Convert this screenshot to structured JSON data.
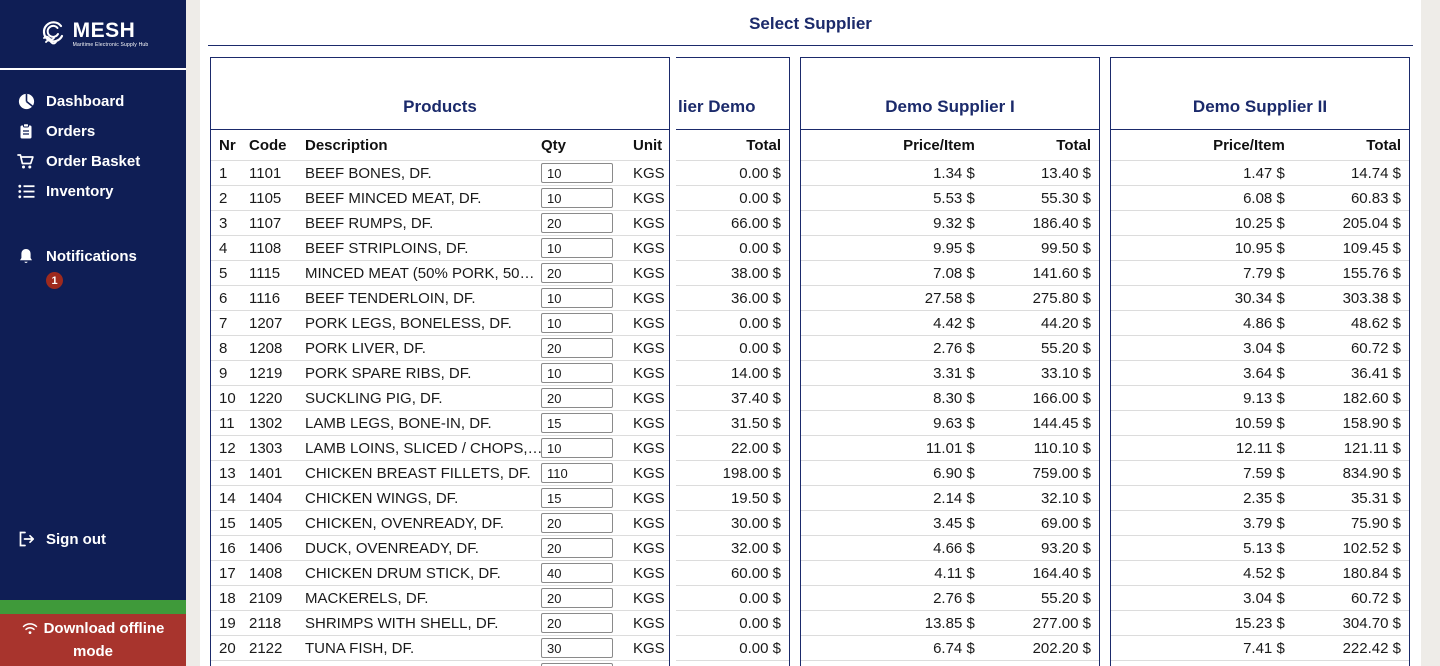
{
  "app": {
    "brand": "MESH",
    "tagline": "Maritime Electronic Supply Hub"
  },
  "colors": {
    "sidebar_bg": "#0f1e55",
    "accent_navy": "#1b2a6b",
    "green_bar": "#3f9a3a",
    "offline_red": "#a8342d",
    "badge_red": "#9e2a1e"
  },
  "icons": {
    "logo": "wave-icon",
    "dashboard": "pie-chart-icon",
    "orders": "clipboard-icon",
    "order_basket": "cart-icon",
    "inventory": "list-icon",
    "notifications": "bell-icon",
    "sign_out": "logout-icon",
    "offline": "wifi-icon"
  },
  "sidebar": {
    "items": [
      {
        "label": "Dashboard"
      },
      {
        "label": "Orders"
      },
      {
        "label": "Order Basket"
      },
      {
        "label": "Inventory"
      }
    ],
    "notifications": {
      "label": "Notifications",
      "badge": "1"
    },
    "sign_out_label": "Sign out",
    "offline_label": "Download offline mode"
  },
  "header": {
    "title": "Select Supplier"
  },
  "products": {
    "title": "Products",
    "columns": {
      "nr": "Nr",
      "code": "Code",
      "description": "Description",
      "qty": "Qty",
      "unit": "Unit"
    }
  },
  "suppliers": {
    "demo_clipped": {
      "title_visible": "lier Demo",
      "columns": {
        "total": "Total"
      }
    },
    "supplier1": {
      "title": "Demo Supplier I",
      "columns": {
        "price": "Price/Item",
        "total": "Total"
      }
    },
    "supplier2": {
      "title": "Demo Supplier II",
      "columns": {
        "price": "Price/Item",
        "total": "Total"
      }
    }
  },
  "rows": [
    {
      "nr": "1",
      "code": "1101",
      "desc": "BEEF BONES, DF.",
      "qty": "10",
      "unit": "KGS",
      "demo_total": "0.00 $",
      "s1_price": "1.34 $",
      "s1_total": "13.40 $",
      "s2_price": "1.47 $",
      "s2_total": "14.74 $"
    },
    {
      "nr": "2",
      "code": "1105",
      "desc": "BEEF MINCED MEAT, DF.",
      "qty": "10",
      "unit": "KGS",
      "demo_total": "0.00 $",
      "s1_price": "5.53 $",
      "s1_total": "55.30 $",
      "s2_price": "6.08 $",
      "s2_total": "60.83 $"
    },
    {
      "nr": "3",
      "code": "1107",
      "desc": "BEEF RUMPS, DF.",
      "qty": "20",
      "unit": "KGS",
      "demo_total": "66.00 $",
      "s1_price": "9.32 $",
      "s1_total": "186.40 $",
      "s2_price": "10.25 $",
      "s2_total": "205.04 $"
    },
    {
      "nr": "4",
      "code": "1108",
      "desc": "BEEF STRIPLOINS, DF.",
      "qty": "10",
      "unit": "KGS",
      "demo_total": "0.00 $",
      "s1_price": "9.95 $",
      "s1_total": "99.50 $",
      "s2_price": "10.95 $",
      "s2_total": "109.45 $"
    },
    {
      "nr": "5",
      "code": "1115",
      "desc": "MINCED MEAT (50% PORK, 50…",
      "qty": "20",
      "unit": "KGS",
      "demo_total": "38.00 $",
      "s1_price": "7.08 $",
      "s1_total": "141.60 $",
      "s2_price": "7.79 $",
      "s2_total": "155.76 $"
    },
    {
      "nr": "6",
      "code": "1116",
      "desc": "BEEF TENDERLOIN, DF.",
      "qty": "10",
      "unit": "KGS",
      "demo_total": "36.00 $",
      "s1_price": "27.58 $",
      "s1_total": "275.80 $",
      "s2_price": "30.34 $",
      "s2_total": "303.38 $"
    },
    {
      "nr": "7",
      "code": "1207",
      "desc": "PORK LEGS, BONELESS, DF.",
      "qty": "10",
      "unit": "KGS",
      "demo_total": "0.00 $",
      "s1_price": "4.42 $",
      "s1_total": "44.20 $",
      "s2_price": "4.86 $",
      "s2_total": "48.62 $"
    },
    {
      "nr": "8",
      "code": "1208",
      "desc": "PORK LIVER, DF.",
      "qty": "20",
      "unit": "KGS",
      "demo_total": "0.00 $",
      "s1_price": "2.76 $",
      "s1_total": "55.20 $",
      "s2_price": "3.04 $",
      "s2_total": "60.72 $"
    },
    {
      "nr": "9",
      "code": "1219",
      "desc": "PORK SPARE RIBS, DF.",
      "qty": "10",
      "unit": "KGS",
      "demo_total": "14.00 $",
      "s1_price": "3.31 $",
      "s1_total": "33.10 $",
      "s2_price": "3.64 $",
      "s2_total": "36.41 $"
    },
    {
      "nr": "10",
      "code": "1220",
      "desc": "SUCKLING PIG, DF.",
      "qty": "20",
      "unit": "KGS",
      "demo_total": "37.40 $",
      "s1_price": "8.30 $",
      "s1_total": "166.00 $",
      "s2_price": "9.13 $",
      "s2_total": "182.60 $"
    },
    {
      "nr": "11",
      "code": "1302",
      "desc": "LAMB LEGS, BONE-IN, DF.",
      "qty": "15",
      "unit": "KGS",
      "demo_total": "31.50 $",
      "s1_price": "9.63 $",
      "s1_total": "144.45 $",
      "s2_price": "10.59 $",
      "s2_total": "158.90 $"
    },
    {
      "nr": "12",
      "code": "1303",
      "desc": "LAMB LOINS, SLICED / CHOPS,…",
      "qty": "10",
      "unit": "KGS",
      "demo_total": "22.00 $",
      "s1_price": "11.01 $",
      "s1_total": "110.10 $",
      "s2_price": "12.11 $",
      "s2_total": "121.11 $"
    },
    {
      "nr": "13",
      "code": "1401",
      "desc": "CHICKEN BREAST FILLETS, DF.",
      "qty": "110",
      "unit": "KGS",
      "demo_total": "198.00 $",
      "s1_price": "6.90 $",
      "s1_total": "759.00 $",
      "s2_price": "7.59 $",
      "s2_total": "834.90 $"
    },
    {
      "nr": "14",
      "code": "1404",
      "desc": "CHICKEN WINGS, DF.",
      "qty": "15",
      "unit": "KGS",
      "demo_total": "19.50 $",
      "s1_price": "2.14 $",
      "s1_total": "32.10 $",
      "s2_price": "2.35 $",
      "s2_total": "35.31 $"
    },
    {
      "nr": "15",
      "code": "1405",
      "desc": "CHICKEN, OVENREADY, DF.",
      "qty": "20",
      "unit": "KGS",
      "demo_total": "30.00 $",
      "s1_price": "3.45 $",
      "s1_total": "69.00 $",
      "s2_price": "3.79 $",
      "s2_total": "75.90 $"
    },
    {
      "nr": "16",
      "code": "1406",
      "desc": "DUCK, OVENREADY, DF.",
      "qty": "20",
      "unit": "KGS",
      "demo_total": "32.00 $",
      "s1_price": "4.66 $",
      "s1_total": "93.20 $",
      "s2_price": "5.13 $",
      "s2_total": "102.52 $"
    },
    {
      "nr": "17",
      "code": "1408",
      "desc": "CHICKEN DRUM STICK, DF.",
      "qty": "40",
      "unit": "KGS",
      "demo_total": "60.00 $",
      "s1_price": "4.11 $",
      "s1_total": "164.40 $",
      "s2_price": "4.52 $",
      "s2_total": "180.84 $"
    },
    {
      "nr": "18",
      "code": "2109",
      "desc": "MACKERELS, DF.",
      "qty": "20",
      "unit": "KGS",
      "demo_total": "0.00 $",
      "s1_price": "2.76 $",
      "s1_total": "55.20 $",
      "s2_price": "3.04 $",
      "s2_total": "60.72 $"
    },
    {
      "nr": "19",
      "code": "2118",
      "desc": "SHRIMPS WITH SHELL, DF.",
      "qty": "20",
      "unit": "KGS",
      "demo_total": "0.00 $",
      "s1_price": "13.85 $",
      "s1_total": "277.00 $",
      "s2_price": "15.23 $",
      "s2_total": "304.70 $"
    },
    {
      "nr": "20",
      "code": "2122",
      "desc": "TUNA FISH, DF.",
      "qty": "30",
      "unit": "KGS",
      "demo_total": "0.00 $",
      "s1_price": "6.74 $",
      "s1_total": "202.20 $",
      "s2_price": "7.41 $",
      "s2_total": "222.42 $"
    }
  ]
}
